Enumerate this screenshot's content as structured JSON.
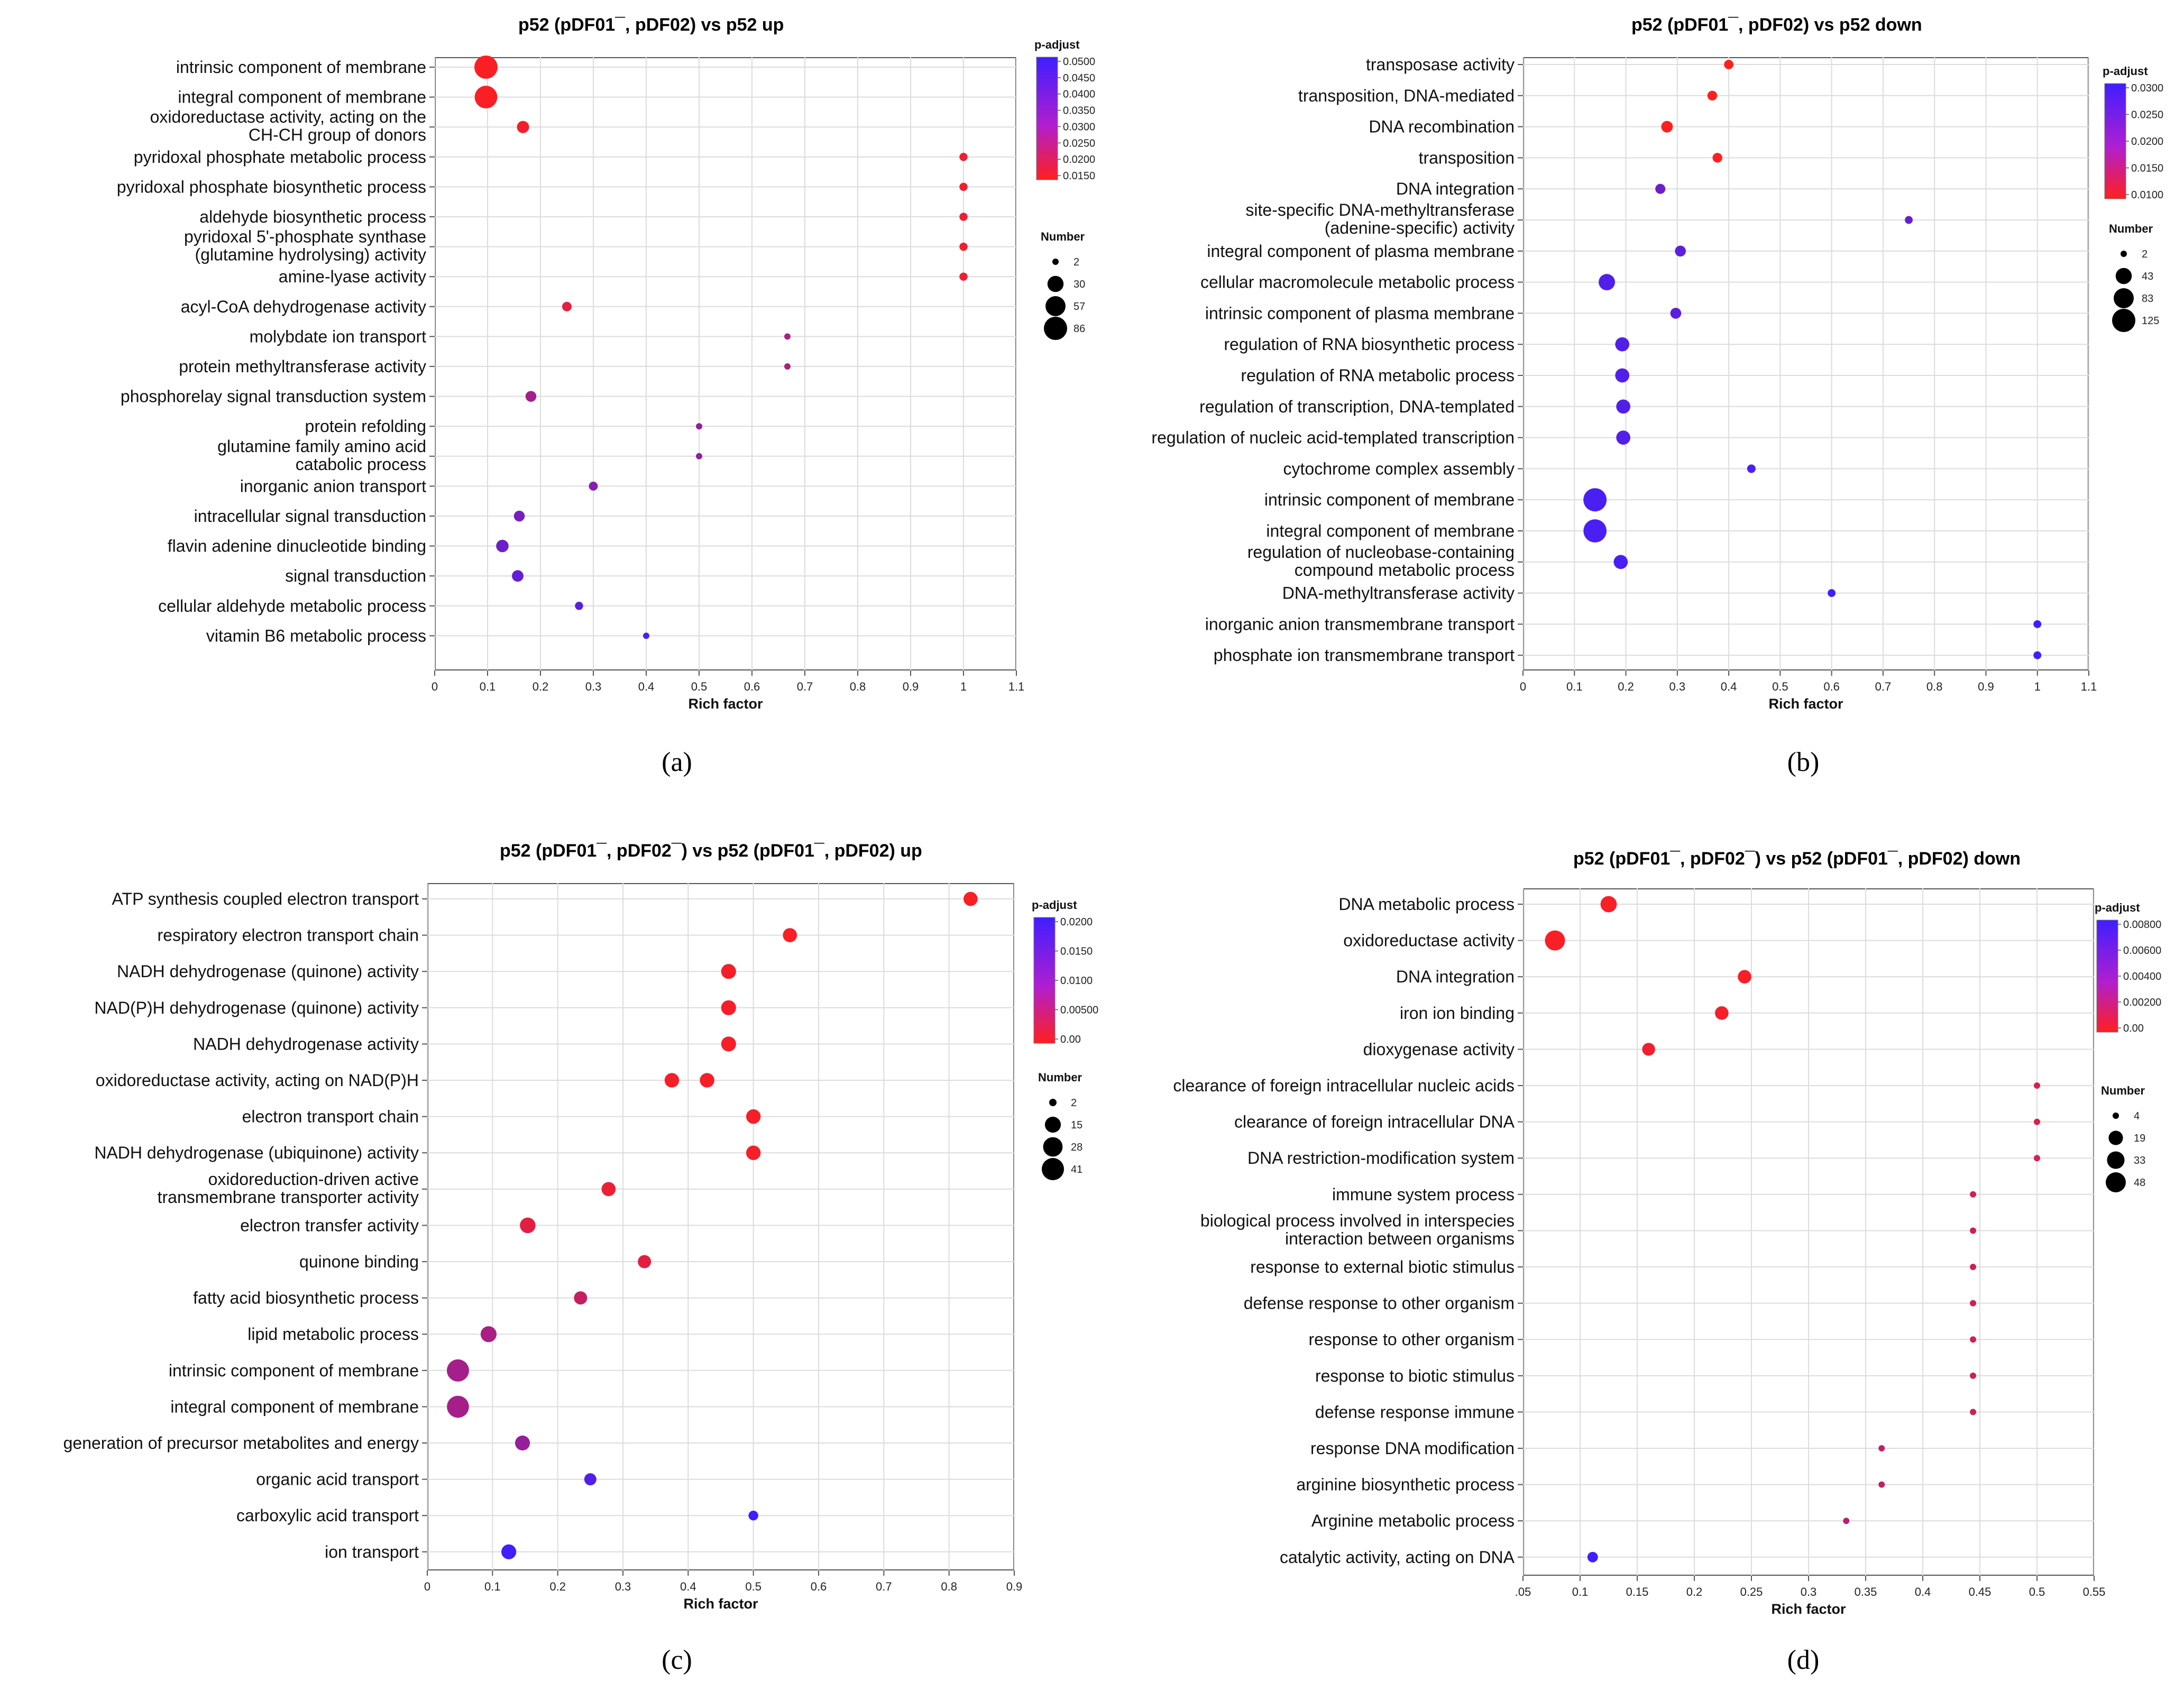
{
  "figure": {
    "panels": [
      {
        "label": "(a)",
        "title": "p52 (pDF01¯, pDF02) vs p52 up",
        "chart_data": {
          "type": "scatter",
          "title": "p52 (pDF01¯, pDF02) vs p52 up",
          "xlabel": "Rich factor",
          "ylabel": "",
          "xlim": [
            0,
            1.1
          ],
          "xticks": [
            "0",
            "0.1",
            "0.2",
            "0.3",
            "0.4",
            "0.5",
            "0.6",
            "0.7",
            "0.8",
            "0.9",
            "1",
            "1.1"
          ],
          "color_legend": {
            "title": "p-adjust",
            "low_color": "#ff1f1f",
            "high_color": "#3f1fff",
            "ticks": [
              "0.0500",
              "0.0450",
              "0.0400",
              "0.0350",
              "0.0300",
              "0.0250",
              "0.0200",
              "0.0150"
            ]
          },
          "size_legend": {
            "title": "Number",
            "values": [
              "2",
              "30",
              "57",
              "86"
            ]
          },
          "categories": [
            {
              "label": "intrinsic component of membrane",
              "rich_factor": 0.097,
              "p_adjust": 0.016,
              "number": 86
            },
            {
              "label": "integral component of membrane",
              "rich_factor": 0.097,
              "p_adjust": 0.016,
              "number": 80
            },
            {
              "label": "oxidoreductase activity, acting on the\nCH-CH group of donors",
              "rich_factor": 0.167,
              "p_adjust": 0.017,
              "number": 12
            },
            {
              "label": "pyridoxal phosphate metabolic process",
              "rich_factor": 1.0,
              "p_adjust": 0.018,
              "number": 3
            },
            {
              "label": "pyridoxal phosphate biosynthetic process",
              "rich_factor": 1.0,
              "p_adjust": 0.018,
              "number": 3
            },
            {
              "label": "aldehyde biosynthetic process",
              "rich_factor": 1.0,
              "p_adjust": 0.018,
              "number": 3
            },
            {
              "label": "pyridoxal 5'-phosphate synthase\n(glutamine hydrolysing) activity",
              "rich_factor": 1.0,
              "p_adjust": 0.018,
              "number": 3
            },
            {
              "label": "amine-lyase activity",
              "rich_factor": 1.0,
              "p_adjust": 0.018,
              "number": 3
            },
            {
              "label": "acyl-CoA dehydrogenase activity",
              "rich_factor": 0.25,
              "p_adjust": 0.02,
              "number": 5
            },
            {
              "label": "molybdate ion transport",
              "rich_factor": 0.667,
              "p_adjust": 0.03,
              "number": 2
            },
            {
              "label": "protein methyltransferase activity",
              "rich_factor": 0.667,
              "p_adjust": 0.03,
              "number": 2
            },
            {
              "label": "phosphorelay signal transduction system",
              "rich_factor": 0.182,
              "p_adjust": 0.032,
              "number": 8
            },
            {
              "label": "protein refolding",
              "rich_factor": 0.5,
              "p_adjust": 0.035,
              "number": 2
            },
            {
              "label": "glutamine family amino acid\ncatabolic process",
              "rich_factor": 0.5,
              "p_adjust": 0.035,
              "number": 2
            },
            {
              "label": "inorganic anion transport",
              "rich_factor": 0.3,
              "p_adjust": 0.037,
              "number": 4
            },
            {
              "label": "intracellular signal transduction",
              "rich_factor": 0.16,
              "p_adjust": 0.04,
              "number": 8
            },
            {
              "label": "flavin adenine dinucleotide binding",
              "rich_factor": 0.128,
              "p_adjust": 0.042,
              "number": 13
            },
            {
              "label": "signal transduction",
              "rich_factor": 0.157,
              "p_adjust": 0.043,
              "number": 10
            },
            {
              "label": "cellular aldehyde metabolic process",
              "rich_factor": 0.273,
              "p_adjust": 0.045,
              "number": 3
            },
            {
              "label": "vitamin B6 metabolic process",
              "rich_factor": 0.4,
              "p_adjust": 0.048,
              "number": 2
            }
          ]
        }
      },
      {
        "label": "(b)",
        "title": "p52 (pDF01¯, pDF02) vs p52 down",
        "chart_data": {
          "type": "scatter",
          "title": "p52 (pDF01¯, pDF02) vs p52 down",
          "xlabel": "Rich factor",
          "ylabel": "",
          "xlim": [
            0,
            1.1
          ],
          "xticks": [
            "0",
            "0.1",
            "0.2",
            "0.3",
            "0.4",
            "0.5",
            "0.6",
            "0.7",
            "0.8",
            "0.9",
            "1",
            "1.1"
          ],
          "color_legend": {
            "title": "p-adjust",
            "low_color": "#ff1f1f",
            "high_color": "#3f1fff",
            "ticks": [
              "0.0300",
              "0.0250",
              "0.0200",
              "0.0150",
              "0.0100"
            ]
          },
          "size_legend": {
            "title": "Number",
            "values": [
              "2",
              "43",
              "83",
              "125"
            ]
          },
          "categories": [
            {
              "label": "transposase activity",
              "rich_factor": 0.4,
              "p_adjust": 0.008,
              "number": 6
            },
            {
              "label": "transposition, DNA-mediated",
              "rich_factor": 0.368,
              "p_adjust": 0.008,
              "number": 7
            },
            {
              "label": "DNA recombination",
              "rich_factor": 0.28,
              "p_adjust": 0.009,
              "number": 14
            },
            {
              "label": "transposition",
              "rich_factor": 0.378,
              "p_adjust": 0.0095,
              "number": 7
            },
            {
              "label": "DNA integration",
              "rich_factor": 0.267,
              "p_adjust": 0.025,
              "number": 8
            },
            {
              "label": "site-specific DNA-methyltransferase\n(adenine-specific) activity",
              "rich_factor": 0.75,
              "p_adjust": 0.026,
              "number": 3
            },
            {
              "label": "integral component of plasma membrane",
              "rich_factor": 0.306,
              "p_adjust": 0.027,
              "number": 11
            },
            {
              "label": "cellular macromolecule metabolic process",
              "rich_factor": 0.163,
              "p_adjust": 0.028,
              "number": 45
            },
            {
              "label": "intrinsic component of plasma membrane",
              "rich_factor": 0.297,
              "p_adjust": 0.027,
              "number": 11
            },
            {
              "label": "regulation of RNA biosynthetic process",
              "rich_factor": 0.193,
              "p_adjust": 0.028,
              "number": 28
            },
            {
              "label": "regulation of RNA metabolic process",
              "rich_factor": 0.193,
              "p_adjust": 0.028,
              "number": 28
            },
            {
              "label": "regulation of transcription, DNA-templated",
              "rich_factor": 0.195,
              "p_adjust": 0.028,
              "number": 28
            },
            {
              "label": "regulation of nucleic acid-templated transcription",
              "rich_factor": 0.195,
              "p_adjust": 0.028,
              "number": 28
            },
            {
              "label": "cytochrome complex assembly",
              "rich_factor": 0.444,
              "p_adjust": 0.029,
              "number": 4
            },
            {
              "label": "intrinsic component of membrane",
              "rich_factor": 0.14,
              "p_adjust": 0.029,
              "number": 125
            },
            {
              "label": "integral component of membrane",
              "rich_factor": 0.14,
              "p_adjust": 0.029,
              "number": 123
            },
            {
              "label": "regulation of nucleobase-containing\ncompound metabolic process",
              "rich_factor": 0.19,
              "p_adjust": 0.029,
              "number": 28
            },
            {
              "label": "DNA-methyltransferase  activity",
              "rich_factor": 0.6,
              "p_adjust": 0.031,
              "number": 3
            },
            {
              "label": "inorganic anion transmembrane transport",
              "rich_factor": 1.0,
              "p_adjust": 0.032,
              "number": 3
            },
            {
              "label": "phosphate ion transmembrane transport",
              "rich_factor": 1.0,
              "p_adjust": 0.032,
              "number": 3
            }
          ]
        }
      },
      {
        "label": "(c)",
        "title": "p52 (pDF01¯, pDF02¯) vs p52 (pDF01¯, pDF02) up",
        "chart_data": {
          "type": "scatter",
          "title": "p52 (pDF01¯, pDF02¯) vs p52 (pDF01¯, pDF02) up",
          "xlabel": "Rich factor",
          "ylabel": "",
          "xlim": [
            0,
            0.9
          ],
          "xticks": [
            "0",
            "0.1",
            "0.2",
            "0.3",
            "0.4",
            "0.5",
            "0.6",
            "0.7",
            "0.8",
            "0.9"
          ],
          "color_legend": {
            "title": "p-adjust",
            "low_color": "#ff1f1f",
            "high_color": "#3f1fff",
            "ticks": [
              "0.0200",
              "0.0150",
              "0.0100",
              "0.00500",
              "0.00"
            ]
          },
          "size_legend": {
            "title": "Number",
            "values": [
              "2",
              "15",
              "28",
              "41"
            ]
          },
          "categories": [
            {
              "label": "ATP synthesis coupled electron transport",
              "rich_factor": 0.833,
              "p_adjust": 0.0005,
              "number": 10
            },
            {
              "label": "respiratory electron transport chain",
              "rich_factor": 0.556,
              "p_adjust": 0.0005,
              "number": 10
            },
            {
              "label": "NADH dehydrogenase (quinone) activity",
              "rich_factor": 0.462,
              "p_adjust": 0.001,
              "number": 12
            },
            {
              "label": "NAD(P)H dehydrogenase (quinone) activity",
              "rich_factor": 0.462,
              "p_adjust": 0.001,
              "number": 12
            },
            {
              "label": "NADH dehydrogenase activity",
              "rich_factor": 0.462,
              "p_adjust": 0.001,
              "number": 12
            },
            {
              "label": "oxidoreductase activity, acting on NAD(P)H",
              "rich_factor": 0.375,
              "p_adjust": 0.001,
              "number": 11,
              "extra_rich_factor": 0.429
            },
            {
              "label": "electron transport chain",
              "rich_factor": 0.5,
              "p_adjust": 0.001,
              "number": 11
            },
            {
              "label": "NADH dehydrogenase (ubiquinone) activity",
              "rich_factor": 0.5,
              "p_adjust": 0.001,
              "number": 11
            },
            {
              "label": "oxidoreduction-driven active\ntransmembrane transporter activity",
              "rich_factor": 0.278,
              "p_adjust": 0.002,
              "number": 10
            },
            {
              "label": "electron transfer activity",
              "rich_factor": 0.154,
              "p_adjust": 0.003,
              "number": 14
            },
            {
              "label": "quinone binding",
              "rich_factor": 0.333,
              "p_adjust": 0.003,
              "number": 8
            },
            {
              "label": "fatty acid biosynthetic process",
              "rich_factor": 0.235,
              "p_adjust": 0.006,
              "number": 8
            },
            {
              "label": "lipid metabolic process",
              "rich_factor": 0.094,
              "p_adjust": 0.009,
              "number": 15
            },
            {
              "label": "intrinsic component of membrane",
              "rich_factor": 0.047,
              "p_adjust": 0.0095,
              "number": 41
            },
            {
              "label": "integral component of membrane",
              "rich_factor": 0.047,
              "p_adjust": 0.0095,
              "number": 40
            },
            {
              "label": "generation of precursor metabolites and energy",
              "rich_factor": 0.146,
              "p_adjust": 0.011,
              "number": 12
            },
            {
              "label": "organic acid transport",
              "rich_factor": 0.25,
              "p_adjust": 0.018,
              "number": 6
            },
            {
              "label": "carboxylic acid transport",
              "rich_factor": 0.5,
              "p_adjust": 0.02,
              "number": 3
            },
            {
              "label": "ion transport",
              "rich_factor": 0.125,
              "p_adjust": 0.021,
              "number": 12
            }
          ]
        }
      },
      {
        "label": "(d)",
        "title": "p52 (pDF01¯, pDF02¯) vs p52 (pDF01¯, pDF02) down",
        "chart_data": {
          "type": "scatter",
          "title": "p52 (pDF01¯, pDF02¯) vs p52 (pDF01¯, pDF02) down",
          "xlabel": "Rich factor",
          "ylabel": "",
          "xlim": [
            0.05,
            0.55
          ],
          "xticks": [
            ".05",
            "0.1",
            "0.15",
            "0.2",
            "0.25",
            "0.3",
            "0.35",
            "0.4",
            "0.45",
            "0.5",
            "0.55"
          ],
          "color_legend": {
            "title": "p-adjust",
            "low_color": "#ff1f1f",
            "high_color": "#3f1fff",
            "ticks": [
              "0.00800",
              "0.00600",
              "0.00400",
              "0.00200",
              "0.00"
            ]
          },
          "size_legend": {
            "title": "Number",
            "values": [
              "4",
              "19",
              "33",
              "48"
            ]
          },
          "categories": [
            {
              "label": "DNA metabolic process",
              "rich_factor": 0.125,
              "p_adjust": 0.0003,
              "number": 27
            },
            {
              "label": "oxidoreductase activity",
              "rich_factor": 0.078,
              "p_adjust": 0.0003,
              "number": 48
            },
            {
              "label": "DNA integration",
              "rich_factor": 0.244,
              "p_adjust": 0.0003,
              "number": 16
            },
            {
              "label": "iron ion binding",
              "rich_factor": 0.224,
              "p_adjust": 0.0004,
              "number": 16
            },
            {
              "label": "dioxygenase activity",
              "rich_factor": 0.16,
              "p_adjust": 0.0006,
              "number": 14
            },
            {
              "label": "clearance of foreign intracellular nucleic acids",
              "rich_factor": 0.5,
              "p_adjust": 0.0016,
              "number": 4
            },
            {
              "label": "clearance of foreign intracellular DNA",
              "rich_factor": 0.5,
              "p_adjust": 0.0016,
              "number": 4
            },
            {
              "label": "DNA restriction-modification system",
              "rich_factor": 0.5,
              "p_adjust": 0.0016,
              "number": 4
            },
            {
              "label": "immune system process",
              "rich_factor": 0.444,
              "p_adjust": 0.002,
              "number": 4
            },
            {
              "label": "biological process involved in interspecies\ninteraction between organisms",
              "rich_factor": 0.444,
              "p_adjust": 0.002,
              "number": 4
            },
            {
              "label": "response to external biotic stimulus",
              "rich_factor": 0.444,
              "p_adjust": 0.002,
              "number": 4
            },
            {
              "label": "defense response to other organism",
              "rich_factor": 0.444,
              "p_adjust": 0.002,
              "number": 4
            },
            {
              "label": "response to other organism",
              "rich_factor": 0.444,
              "p_adjust": 0.002,
              "number": 4
            },
            {
              "label": "response to biotic stimulus",
              "rich_factor": 0.444,
              "p_adjust": 0.002,
              "number": 4
            },
            {
              "label": "defense response immune",
              "rich_factor": 0.444,
              "p_adjust": 0.002,
              "number": 4
            },
            {
              "label": "response DNA modification",
              "rich_factor": 0.364,
              "p_adjust": 0.0025,
              "number": 4
            },
            {
              "label": "arginine biosynthetic process",
              "rich_factor": 0.364,
              "p_adjust": 0.0025,
              "number": 4
            },
            {
              "label": "Arginine metabolic process",
              "rich_factor": 0.333,
              "p_adjust": 0.003,
              "number": 4
            },
            {
              "label": "catalytic activity, acting on DNA",
              "rich_factor": 0.111,
              "p_adjust": 0.008,
              "number": 8
            }
          ]
        }
      }
    ]
  }
}
